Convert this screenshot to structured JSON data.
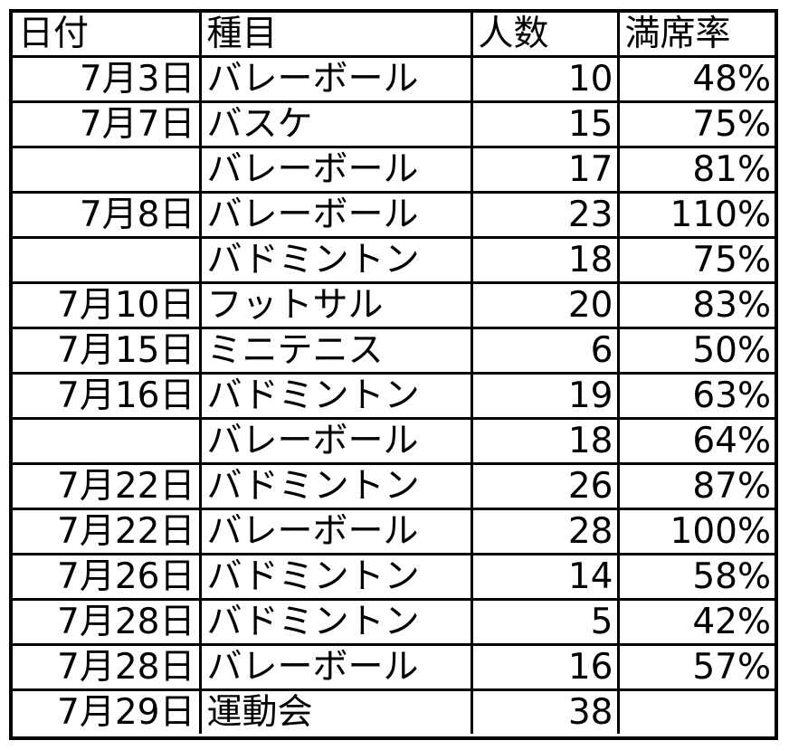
{
  "headers": {
    "date": "日付",
    "event": "種目",
    "count": "人数",
    "rate": "満席率"
  },
  "rows": [
    {
      "date": "7月3日",
      "event": "バレーボール",
      "count": "10",
      "rate": "48%"
    },
    {
      "date": "7月7日",
      "event": "バスケ",
      "count": "15",
      "rate": "75%"
    },
    {
      "date": "",
      "event": "バレーボール",
      "count": "17",
      "rate": "81%"
    },
    {
      "date": "7月8日",
      "event": "バレーボール",
      "count": "23",
      "rate": "110%"
    },
    {
      "date": "",
      "event": "バドミントン",
      "count": "18",
      "rate": "75%"
    },
    {
      "date": "7月10日",
      "event": "フットサル",
      "count": "20",
      "rate": "83%"
    },
    {
      "date": "7月15日",
      "event": "ミニテニス",
      "count": "6",
      "rate": "50%"
    },
    {
      "date": "7月16日",
      "event": "バドミントン",
      "count": "19",
      "rate": "63%"
    },
    {
      "date": "",
      "event": "バレーボール",
      "count": "18",
      "rate": "64%"
    },
    {
      "date": "7月22日",
      "event": "バドミントン",
      "count": "26",
      "rate": "87%"
    },
    {
      "date": "7月22日",
      "event": "バレーボール",
      "count": "28",
      "rate": "100%"
    },
    {
      "date": "7月26日",
      "event": "バドミントン",
      "count": "14",
      "rate": "58%"
    },
    {
      "date": "7月28日",
      "event": "バドミントン",
      "count": "5",
      "rate": "42%"
    },
    {
      "date": "7月28日",
      "event": "バレーボール",
      "count": "16",
      "rate": "57%"
    },
    {
      "date": "7月29日",
      "event": "運動会",
      "count": "38",
      "rate": ""
    }
  ]
}
